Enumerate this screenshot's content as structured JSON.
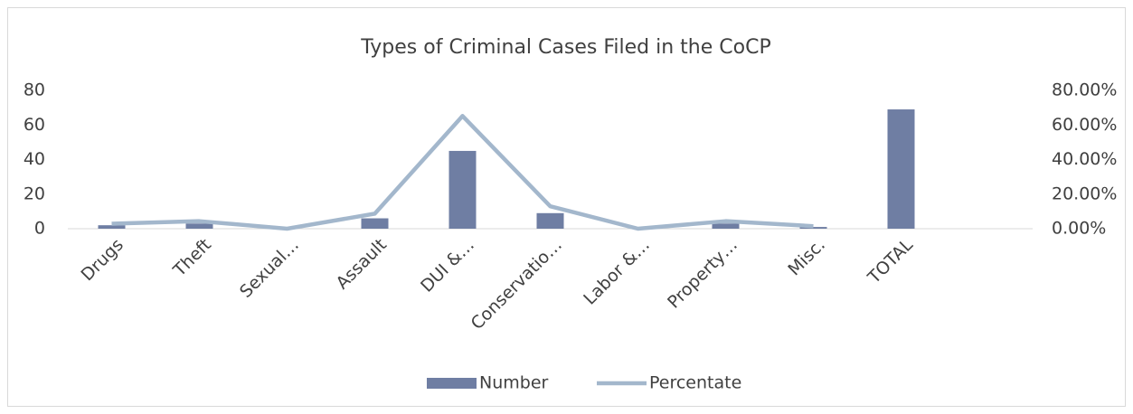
{
  "chart_data": {
    "type": "bar-line",
    "title": "Types of Criminal Cases Filed in the CoCP",
    "categories": [
      "Drugs",
      "Theft",
      "Sexual…",
      "Assault",
      "DUI &…",
      "Conservatio…",
      "Labor &…",
      "Property…",
      "Misc.",
      "TOTAL",
      null
    ],
    "series": [
      {
        "name": "Number",
        "type": "bar",
        "color": "#6f7ea3",
        "values": [
          2,
          3,
          0,
          6,
          45,
          9,
          0,
          3,
          1,
          69,
          null
        ]
      },
      {
        "name": "Percentate",
        "type": "line",
        "axis": "y2",
        "color": "#a3b7cc",
        "values": [
          2.9,
          4.35,
          0,
          8.7,
          65.2,
          13.0,
          0,
          4.35,
          1.45,
          null,
          null
        ]
      }
    ],
    "ylim": [
      0,
      80
    ],
    "yticks": [
      0,
      20,
      40,
      60,
      80
    ],
    "y2lim": [
      0,
      80
    ],
    "y2ticks": [
      {
        "value": 0,
        "label": "0.00%"
      },
      {
        "value": 20,
        "label": "20.00%"
      },
      {
        "value": 40,
        "label": "40.00%"
      },
      {
        "value": 60,
        "label": "60.00%"
      },
      {
        "value": 80,
        "label": "80.00%"
      }
    ],
    "legend": "bottom"
  }
}
